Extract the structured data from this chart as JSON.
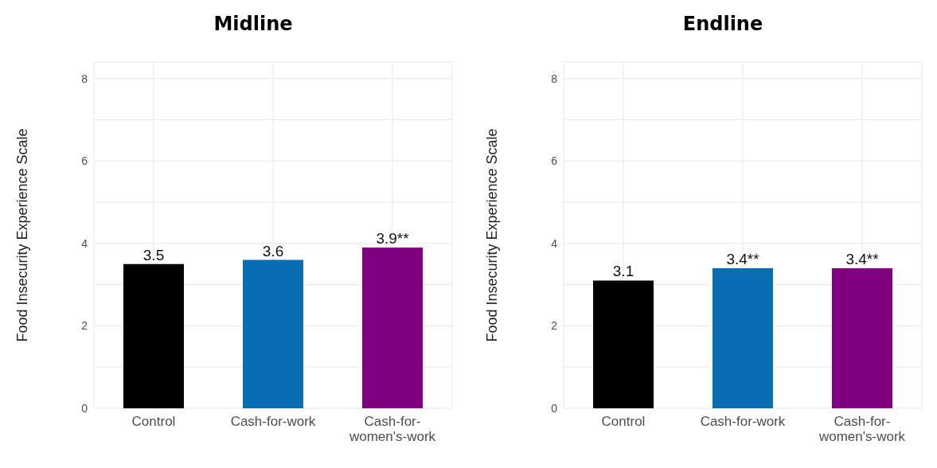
{
  "chart_data": [
    {
      "type": "bar",
      "title": "Midline",
      "ylabel": "Food Insecurity Experience Scale",
      "categories": [
        "Control",
        "Cash-for-work",
        "Cash-for-women's-work"
      ],
      "values": [
        3.5,
        3.6,
        3.9
      ],
      "colors": [
        "#000000",
        "#0a6eb4",
        "#800080"
      ],
      "value_labels": [
        "3.5",
        "3.6",
        "3.9**"
      ],
      "ylim": [
        0,
        8.4
      ],
      "yticks": [
        0,
        {
          "value": 1,
          "label": null
        },
        2,
        {
          "value": 3,
          "label": null
        },
        4,
        {
          "value": 5,
          "label": null
        },
        6,
        {
          "value": 7,
          "label": null
        },
        8
      ],
      "grid": true
    },
    {
      "type": "bar",
      "title": "Endline",
      "ylabel": "Food Insecurity Experience Scale",
      "categories": [
        "Control",
        "Cash-for-work",
        "Cash-for-women's-work"
      ],
      "values": [
        3.1,
        3.4,
        3.4
      ],
      "colors": [
        "#000000",
        "#0a6eb4",
        "#800080"
      ],
      "value_labels": [
        "3.1",
        "3.4**",
        "3.4**"
      ],
      "ylim": [
        0,
        8.4
      ],
      "yticks": [
        0,
        {
          "value": 1,
          "label": null
        },
        2,
        {
          "value": 3,
          "label": null
        },
        4,
        {
          "value": 5,
          "label": null
        },
        6,
        {
          "value": 7,
          "label": null
        },
        8
      ],
      "grid": true
    }
  ]
}
